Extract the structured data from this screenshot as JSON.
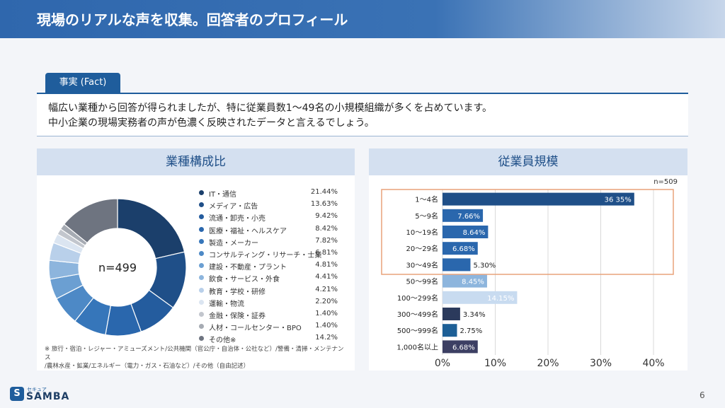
{
  "header": {
    "title": "現場のリアルな声を収集。回答者のプロフィール"
  },
  "fact": {
    "tab_label": "事実 (Fact)",
    "line1": "幅広い業種から回答が得られましたが、特に従業員数1〜49名の小規模組織が多くを占めています。",
    "line2": "中小企業の現場実務者の声が色濃く反映されたデータと言えるでしょう。"
  },
  "left_panel": {
    "title": "業種構成比",
    "note_line1": "※ 旅行・宿泊・レジャー・アミューズメント/公共機関（官公庁・自治体・公社など）/警備・清掃・メンテナンス",
    "note_line2": "/農林水産・鉱業/エネルギー（電力・ガス・石油など）/その他（自由記述）"
  },
  "right_panel": {
    "title": "従業員規模"
  },
  "footer": {
    "logo_small": "セキュア",
    "logo_main": "SAMBA",
    "logo_mark": "S",
    "page_number": "6"
  },
  "chart_data": [
    {
      "type": "pie",
      "center_label": "n=499",
      "categories": [
        "IT・通信",
        "メディア・広告",
        "流通・卸売・小売",
        "医療・福祉・ヘルスケア",
        "製造・メーカー",
        "コンサルティング・リサーチ・士業",
        "建設・不動産・プラント",
        "飲食・サービス・外食",
        "教育・学校・研修",
        "運輸・物流",
        "金融・保険・証券",
        "人材・コールセンター・BPO",
        "その他※"
      ],
      "values": [
        21.44,
        13.63,
        9.42,
        8.42,
        7.82,
        6.81,
        4.81,
        4.41,
        4.21,
        2.2,
        1.4,
        1.4,
        14.2
      ],
      "value_labels": [
        "21.44%",
        "13.63%",
        "9.42%",
        "8.42%",
        "7.82%",
        "6.81%",
        "4.81%",
        "4.41%",
        "4.21%",
        "2.20%",
        "1.40%",
        "1.40%",
        "14.2%"
      ],
      "colors": [
        "#1b3f6b",
        "#1f4f88",
        "#245c9e",
        "#2a67ad",
        "#3676ba",
        "#4d89c6",
        "#6b9fd2",
        "#8db5dd",
        "#b9d0ea",
        "#dbe5f1",
        "#c2c6cd",
        "#a6abb3",
        "#6e7480"
      ],
      "legend_placement": "right"
    },
    {
      "type": "bar",
      "orientation": "horizontal",
      "n_label": "n=509",
      "categories": [
        "1〜4名",
        "5〜9名",
        "10〜19名",
        "20〜29名",
        "30〜49名",
        "50〜99名",
        "100〜299名",
        "300〜499名",
        "500〜999名",
        "1,000名以上"
      ],
      "values": [
        36.35,
        7.66,
        8.64,
        6.68,
        5.3,
        8.45,
        14.15,
        3.34,
        2.75,
        6.68
      ],
      "value_labels": [
        "36 35%",
        "7.66%",
        "8.64%",
        "6.68%",
        "5.30%",
        "8.45%",
        "14.15%",
        "3.34%",
        "2.75%",
        "6.68%"
      ],
      "colors": [
        "#1f4f88",
        "#2a67ad",
        "#2a67ad",
        "#2a67ad",
        "#2a67ad",
        "#8db5dd",
        "#c8dbf0",
        "#2b3a5c",
        "#1d5f96",
        "#3c3f63"
      ],
      "xlim": [
        0,
        40
      ],
      "xticks": [
        "0%",
        "10%",
        "20%",
        "30%",
        "40%"
      ],
      "grid": true,
      "highlight": "1〜4名 to 30〜49名"
    }
  ]
}
